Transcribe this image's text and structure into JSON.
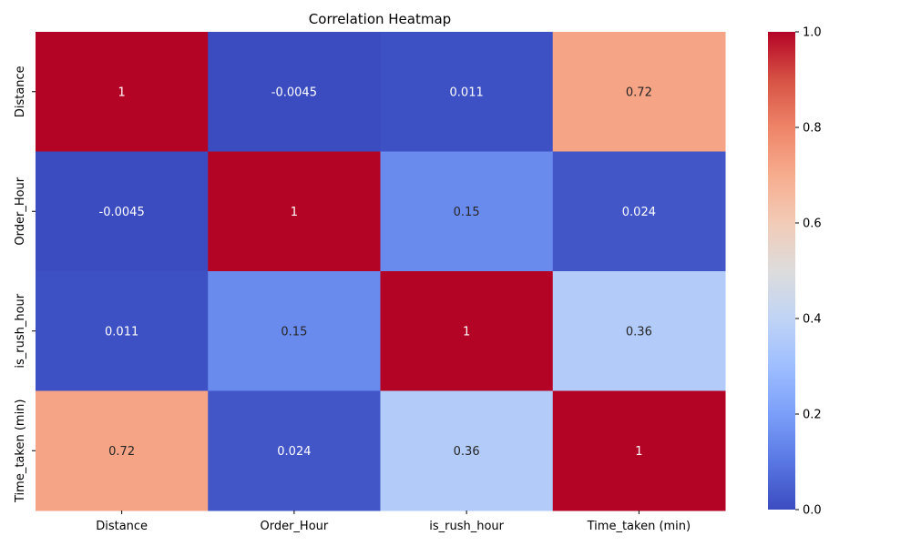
{
  "chart_data": {
    "type": "heatmap",
    "title": "Correlation Heatmap",
    "x_labels": [
      "Distance",
      "Order_Hour",
      "is_rush_hour",
      "Time_taken (min)"
    ],
    "y_labels": [
      "Distance",
      "Order_Hour",
      "is_rush_hour",
      "Time_taken (min)"
    ],
    "values": [
      [
        1,
        -0.0045,
        0.011,
        0.72
      ],
      [
        -0.0045,
        1,
        0.15,
        0.024
      ],
      [
        0.011,
        0.15,
        1,
        0.36
      ],
      [
        0.72,
        0.024,
        0.36,
        1
      ]
    ],
    "annotations": [
      [
        "1",
        "-0.0045",
        "0.011",
        "0.72"
      ],
      [
        "-0.0045",
        "1",
        "0.15",
        "0.024"
      ],
      [
        "0.011",
        "0.15",
        "1",
        "0.36"
      ],
      [
        "0.72",
        "0.024",
        "0.36",
        "1"
      ]
    ],
    "colormap": "coolwarm",
    "colors": {
      "low": "#3b4cc0",
      "mid": "#dddddd",
      "high": "#b40426"
    },
    "colorbar": {
      "range": [
        0,
        1
      ],
      "ticks": [
        "0.0",
        "0.2",
        "0.4",
        "0.6",
        "0.8",
        "1.0"
      ],
      "tick_values": [
        0,
        0.2,
        0.4,
        0.6,
        0.8,
        1
      ]
    }
  }
}
